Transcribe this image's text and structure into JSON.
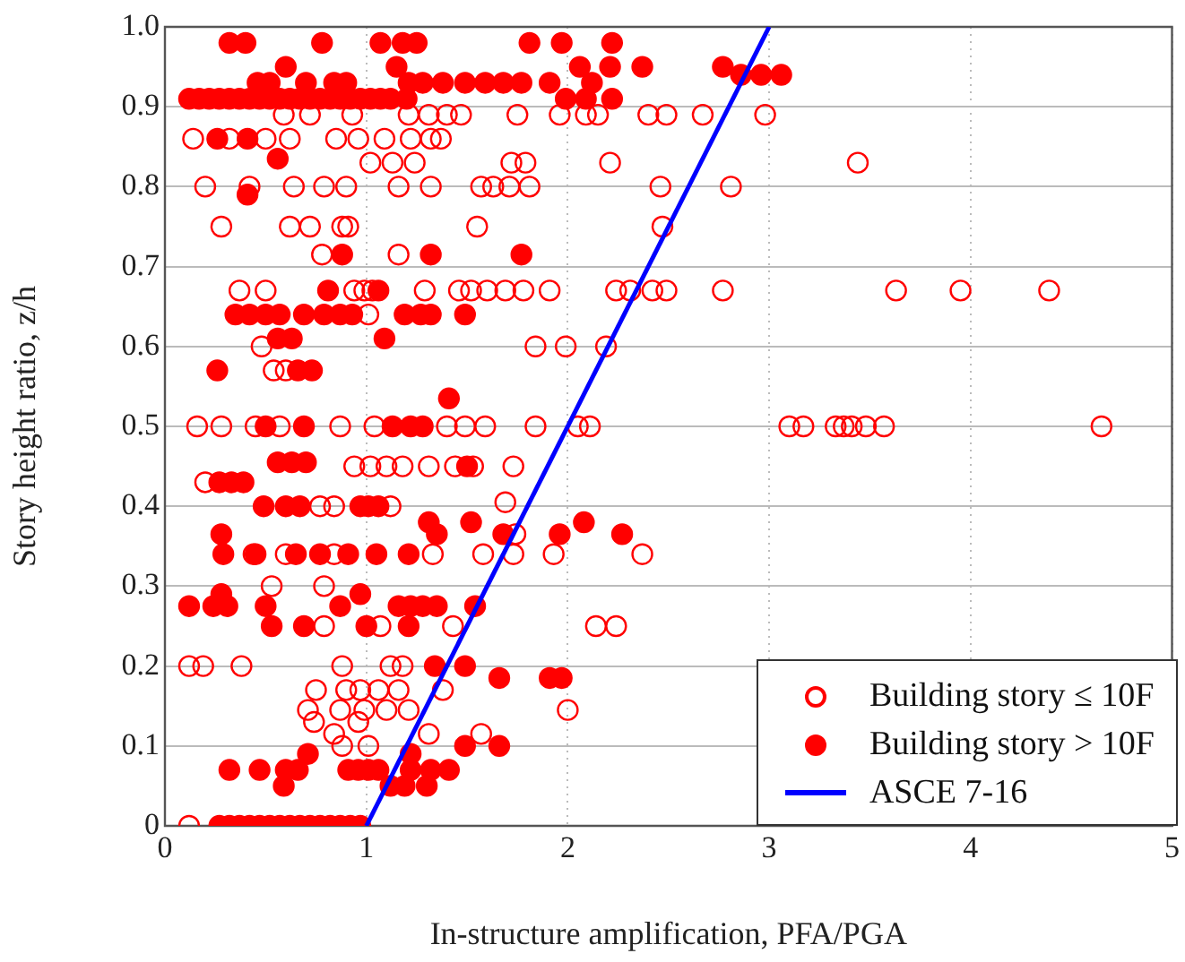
{
  "chart_data": {
    "type": "scatter",
    "xlabel": "In-structure amplification, PFA/PGA",
    "ylabel": "Story height ratio, z/h",
    "xlim": [
      0,
      5
    ],
    "xticks": [
      0,
      1,
      2,
      3,
      4,
      5
    ],
    "ylim": [
      0,
      1
    ],
    "yticks": [
      0,
      0.1,
      0.2,
      0.3,
      0.4,
      0.5,
      0.6,
      0.7,
      0.8,
      0.9,
      {
        "value": 1,
        "label": "1.0"
      }
    ],
    "grid": true,
    "legend": "bottom right",
    "series": [
      {
        "name": "Building story ≤ 10F",
        "color": "#ff0000",
        "marker": "circle",
        "x": [
          0.59,
          0.72,
          0.93,
          1.21,
          1.31,
          1.4,
          1.47,
          1.75,
          1.96,
          2.09,
          2.15,
          2.4,
          2.49,
          2.67,
          2.98,
          0.14,
          0.32,
          0.5,
          0.62,
          0.85,
          0.96,
          1.09,
          1.22,
          1.32,
          1.37,
          1.02,
          1.13,
          1.24,
          1.72,
          1.79,
          2.21,
          3.44,
          0.2,
          0.42,
          0.64,
          0.79,
          0.9,
          1.16,
          1.32,
          1.57,
          1.63,
          1.71,
          1.81,
          2.46,
          2.81,
          0.28,
          0.62,
          0.72,
          0.88,
          0.91,
          1.55,
          2.47,
          0.78,
          1.16,
          0.37,
          0.5,
          0.94,
          0.99,
          1.03,
          1.29,
          1.46,
          1.52,
          1.6,
          1.69,
          1.78,
          1.91,
          2.24,
          2.31,
          2.42,
          2.49,
          2.77,
          3.63,
          3.95,
          4.39,
          1.01,
          0.48,
          1.84,
          1.99,
          2.19,
          0.54,
          0.6,
          0.16,
          0.28,
          0.45,
          0.57,
          0.87,
          1.04,
          1.4,
          1.49,
          1.59,
          1.84,
          2.05,
          2.11,
          3.1,
          3.17,
          3.33,
          3.37,
          3.41,
          3.48,
          3.57,
          4.65,
          0.94,
          1.02,
          1.1,
          1.18,
          1.31,
          1.44,
          1.53,
          1.73,
          0.2,
          0.77,
          0.84,
          1.12,
          1.69,
          1.74,
          0.44,
          0.6,
          0.84,
          1.33,
          1.58,
          1.73,
          1.93,
          2.37,
          0.53,
          0.79,
          0.79,
          1.07,
          1.43,
          2.14,
          2.24,
          0.12,
          0.19,
          0.38,
          0.88,
          1.12,
          1.18,
          0.75,
          0.9,
          0.97,
          1.06,
          1.16,
          1.38,
          0.71,
          0.87,
          0.99,
          1.1,
          1.21,
          2.0,
          0.74,
          0.96,
          0.84,
          1.31,
          1.57,
          0.88,
          1.01,
          0.12
        ],
        "values": [
          0.89,
          0.89,
          0.89,
          0.89,
          0.89,
          0.89,
          0.89,
          0.89,
          0.89,
          0.89,
          0.89,
          0.89,
          0.89,
          0.89,
          0.89,
          0.86,
          0.86,
          0.86,
          0.86,
          0.86,
          0.86,
          0.86,
          0.86,
          0.86,
          0.86,
          0.83,
          0.83,
          0.83,
          0.83,
          0.83,
          0.83,
          0.83,
          0.8,
          0.8,
          0.8,
          0.8,
          0.8,
          0.8,
          0.8,
          0.8,
          0.8,
          0.8,
          0.8,
          0.8,
          0.8,
          0.75,
          0.75,
          0.75,
          0.75,
          0.75,
          0.75,
          0.75,
          0.715,
          0.715,
          0.67,
          0.67,
          0.67,
          0.67,
          0.67,
          0.67,
          0.67,
          0.67,
          0.67,
          0.67,
          0.67,
          0.67,
          0.67,
          0.67,
          0.67,
          0.67,
          0.67,
          0.67,
          0.67,
          0.67,
          0.64,
          0.6,
          0.6,
          0.6,
          0.6,
          0.57,
          0.57,
          0.5,
          0.5,
          0.5,
          0.5,
          0.5,
          0.5,
          0.5,
          0.5,
          0.5,
          0.5,
          0.5,
          0.5,
          0.5,
          0.5,
          0.5,
          0.5,
          0.5,
          0.5,
          0.5,
          0.5,
          0.45,
          0.45,
          0.45,
          0.45,
          0.45,
          0.45,
          0.45,
          0.45,
          0.43,
          0.4,
          0.4,
          0.4,
          0.405,
          0.365,
          0.34,
          0.34,
          0.34,
          0.34,
          0.34,
          0.34,
          0.34,
          0.34,
          0.3,
          0.3,
          0.25,
          0.25,
          0.25,
          0.25,
          0.25,
          0.2,
          0.2,
          0.2,
          0.2,
          0.2,
          0.2,
          0.17,
          0.17,
          0.17,
          0.17,
          0.17,
          0.17,
          0.145,
          0.145,
          0.145,
          0.145,
          0.145,
          0.145,
          0.13,
          0.13,
          0.115,
          0.115,
          0.115,
          0.1,
          0.1,
          0
        ]
      },
      {
        "name": "Building story > 10F",
        "color": "#ff0000",
        "marker": "circle",
        "x": [
          0.32,
          0.4,
          0.78,
          1.07,
          1.18,
          1.25,
          1.81,
          1.97,
          2.22,
          0.6,
          1.15,
          2.06,
          2.21,
          2.37,
          2.77,
          2.86,
          2.96,
          3.06,
          0.46,
          0.52,
          0.7,
          0.84,
          0.9,
          1.21,
          1.28,
          1.38,
          1.49,
          1.59,
          1.68,
          1.77,
          1.91,
          2.12,
          0.12,
          0.17,
          0.22,
          0.27,
          0.32,
          0.37,
          0.42,
          0.47,
          0.52,
          0.57,
          0.62,
          0.67,
          0.72,
          0.77,
          0.82,
          0.87,
          0.92,
          0.97,
          1.02,
          1.07,
          1.12,
          1.2,
          1.99,
          2.09,
          2.22,
          0.26,
          0.41,
          0.56,
          0.41,
          0.88,
          1.32,
          1.77,
          0.81,
          1.06,
          0.35,
          0.42,
          0.5,
          0.57,
          0.69,
          0.79,
          0.87,
          0.93,
          1.19,
          1.27,
          1.32,
          1.49,
          0.56,
          0.63,
          1.09,
          0.26,
          0.66,
          0.73,
          1.41,
          0.5,
          0.69,
          1.13,
          1.22,
          1.28,
          0.56,
          0.63,
          0.7,
          1.5,
          0.27,
          0.33,
          0.39,
          0.49,
          0.6,
          0.67,
          0.97,
          1.01,
          1.06,
          1.31,
          1.52,
          2.08,
          0.28,
          1.35,
          1.68,
          1.96,
          2.27,
          0.29,
          0.45,
          0.65,
          0.77,
          0.91,
          1.05,
          1.21,
          0.28,
          0.97,
          0.12,
          0.24,
          0.31,
          0.5,
          0.87,
          1.16,
          1.22,
          1.28,
          1.35,
          1.54,
          0.53,
          0.69,
          1.0,
          1.21,
          1.34,
          1.49,
          1.66,
          1.91,
          1.97,
          1.49,
          1.66,
          0.71,
          1.22,
          0.32,
          0.47,
          0.6,
          0.66,
          0.91,
          0.96,
          1.01,
          1.06,
          1.22,
          1.32,
          1.41,
          0.59,
          1.12,
          1.19,
          1.3,
          0.27,
          0.32,
          0.37,
          0.42,
          0.47,
          0.52,
          0.57,
          0.62,
          0.67,
          0.72,
          0.77,
          0.82,
          0.87,
          0.92,
          0.97
        ],
        "values": [
          0.98,
          0.98,
          0.98,
          0.98,
          0.98,
          0.98,
          0.98,
          0.98,
          0.98,
          0.95,
          0.95,
          0.95,
          0.95,
          0.95,
          0.95,
          0.94,
          0.94,
          0.94,
          0.93,
          0.93,
          0.93,
          0.93,
          0.93,
          0.93,
          0.93,
          0.93,
          0.93,
          0.93,
          0.93,
          0.93,
          0.93,
          0.93,
          0.91,
          0.91,
          0.91,
          0.91,
          0.91,
          0.91,
          0.91,
          0.91,
          0.91,
          0.91,
          0.91,
          0.91,
          0.91,
          0.91,
          0.91,
          0.91,
          0.91,
          0.91,
          0.91,
          0.91,
          0.91,
          0.91,
          0.91,
          0.91,
          0.91,
          0.86,
          0.86,
          0.835,
          0.79,
          0.715,
          0.715,
          0.715,
          0.67,
          0.67,
          0.64,
          0.64,
          0.64,
          0.64,
          0.64,
          0.64,
          0.64,
          0.64,
          0.64,
          0.64,
          0.64,
          0.64,
          0.61,
          0.61,
          0.61,
          0.57,
          0.57,
          0.57,
          0.535,
          0.5,
          0.5,
          0.5,
          0.5,
          0.5,
          0.455,
          0.455,
          0.455,
          0.45,
          0.43,
          0.43,
          0.43,
          0.4,
          0.4,
          0.4,
          0.4,
          0.4,
          0.4,
          0.38,
          0.38,
          0.38,
          0.365,
          0.365,
          0.365,
          0.365,
          0.365,
          0.34,
          0.34,
          0.34,
          0.34,
          0.34,
          0.34,
          0.34,
          0.29,
          0.29,
          0.275,
          0.275,
          0.275,
          0.275,
          0.275,
          0.275,
          0.275,
          0.275,
          0.275,
          0.275,
          0.25,
          0.25,
          0.25,
          0.25,
          0.2,
          0.2,
          0.185,
          0.185,
          0.185,
          0.1,
          0.1,
          0.09,
          0.09,
          0.07,
          0.07,
          0.07,
          0.07,
          0.07,
          0.07,
          0.07,
          0.07,
          0.07,
          0.07,
          0.07,
          0.05,
          0.05,
          0.05,
          0.05,
          0,
          0,
          0,
          0,
          0,
          0,
          0,
          0,
          0,
          0,
          0,
          0,
          0,
          0,
          0
        ]
      },
      {
        "name": "ASCE 7-16",
        "type": "line",
        "color": "#0000ff",
        "marker": "none",
        "x": [
          1,
          3
        ],
        "values": [
          0,
          1
        ]
      }
    ]
  }
}
